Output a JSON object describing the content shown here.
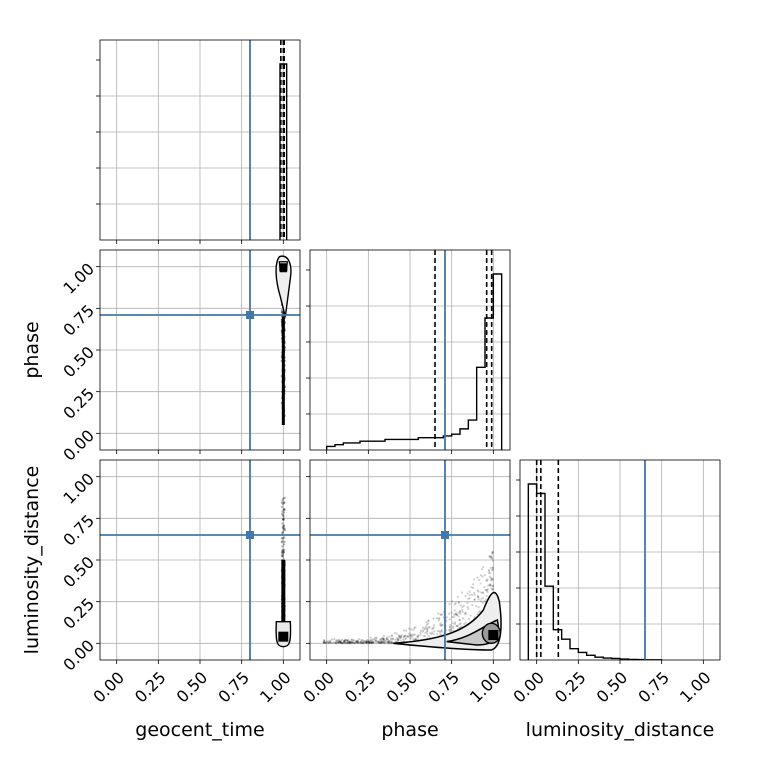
{
  "chart_data": {
    "type": "corner",
    "parameters": [
      "geocent_time",
      "phase",
      "luminosity_distance"
    ],
    "tick_labels": [
      "0.00",
      "0.25",
      "0.50",
      "0.75",
      "1.00"
    ],
    "axis_range": [
      -0.1,
      1.1
    ],
    "grid": true,
    "injection_color": "#4477aa",
    "posterior_color": "#000000",
    "injection_values": {
      "geocent_time": 0.8,
      "phase": 0.71,
      "luminosity_distance": 0.65
    },
    "histograms": {
      "geocent_time": {
        "bin_edges": [
          0.98,
          1.0,
          1.02
        ],
        "counts": [
          1.0,
          1.0
        ],
        "quantiles": [
          0.985,
          1.0,
          1.005
        ]
      },
      "phase": {
        "bin_edges": [
          0.0,
          0.05,
          0.1,
          0.15,
          0.2,
          0.25,
          0.3,
          0.35,
          0.4,
          0.45,
          0.5,
          0.55,
          0.6,
          0.65,
          0.7,
          0.75,
          0.8,
          0.85,
          0.9,
          0.95,
          1.0,
          1.05
        ],
        "counts": [
          0.02,
          0.03,
          0.04,
          0.04,
          0.05,
          0.05,
          0.05,
          0.06,
          0.06,
          0.06,
          0.06,
          0.07,
          0.07,
          0.07,
          0.08,
          0.09,
          0.12,
          0.17,
          0.47,
          0.75,
          1.0
        ],
        "quantiles": [
          0.65,
          0.96,
          0.99
        ]
      },
      "luminosity_distance": {
        "bin_edges": [
          -0.05,
          0.0,
          0.05,
          0.1,
          0.15,
          0.2,
          0.25,
          0.3,
          0.35,
          0.4,
          0.45,
          0.5,
          0.55,
          0.6,
          0.65,
          0.7,
          0.75
        ],
        "counts": [
          0.93,
          0.88,
          0.39,
          0.16,
          0.11,
          0.06,
          0.04,
          0.025,
          0.015,
          0.01,
          0.008,
          0.005,
          0.003,
          0.002,
          0.001,
          0.001
        ],
        "quantiles": [
          0.0,
          0.025,
          0.13
        ]
      }
    },
    "scatter_2d": {
      "phase_vs_geocent_time": {
        "x_center": 1.0,
        "y_range": [
          0.02,
          1.0
        ],
        "density_peak": 1.0
      },
      "luminosity_distance_vs_geocent_time": {
        "x_center": 1.0,
        "y_range": [
          0.0,
          0.88
        ],
        "density_peak": 0.03
      },
      "luminosity_distance_vs_phase": {
        "peak": [
          1.0,
          0.05
        ]
      }
    }
  }
}
